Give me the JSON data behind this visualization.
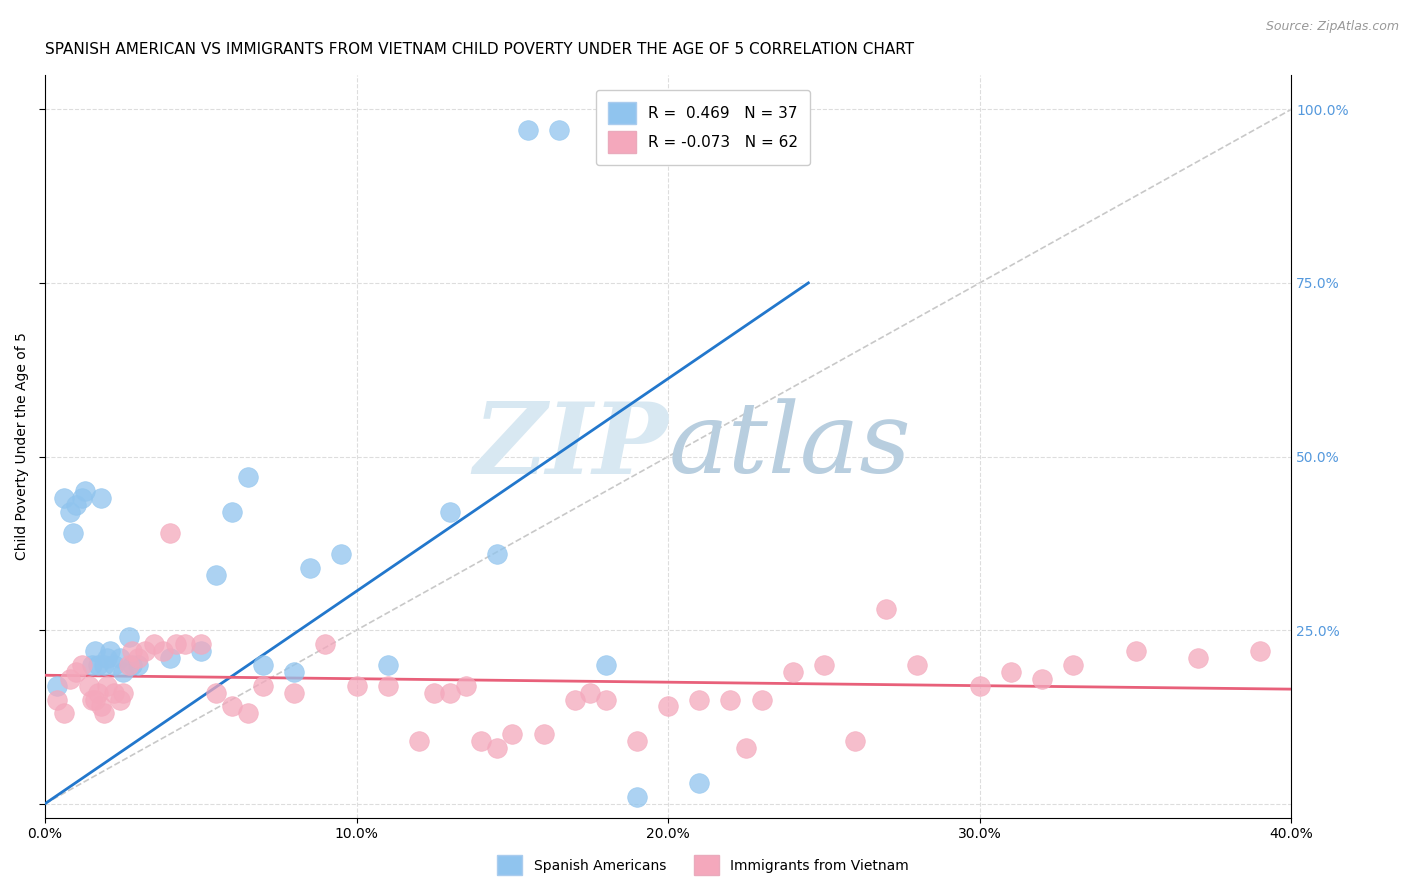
{
  "title": "SPANISH AMERICAN VS IMMIGRANTS FROM VIETNAM CHILD POVERTY UNDER THE AGE OF 5 CORRELATION CHART",
  "source": "Source: ZipAtlas.com",
  "ylabel": "Child Poverty Under the Age of 5",
  "xlabel": "",
  "xlim": [
    0.0,
    0.4
  ],
  "ylim": [
    -0.02,
    1.05
  ],
  "xticks": [
    0.0,
    0.1,
    0.2,
    0.3,
    0.4
  ],
  "yticks": [
    0.0,
    0.25,
    0.5,
    0.75,
    1.0
  ],
  "xtick_labels": [
    "0.0%",
    "10.0%",
    "20.0%",
    "30.0%",
    "40.0%"
  ],
  "right_ytick_labels": [
    "",
    "25.0%",
    "50.0%",
    "75.0%",
    "100.0%"
  ],
  "blue_R": 0.469,
  "blue_N": 37,
  "pink_R": -0.073,
  "pink_N": 62,
  "blue_color": "#90C4EE",
  "pink_color": "#F4A8BC",
  "blue_line_color": "#2277CC",
  "pink_line_color": "#E8607A",
  "watermark_color": "#E2EEF8",
  "background_color": "#FFFFFF",
  "blue_scatter_x": [
    0.004,
    0.006,
    0.008,
    0.009,
    0.01,
    0.012,
    0.013,
    0.015,
    0.016,
    0.017,
    0.018,
    0.019,
    0.02,
    0.021,
    0.022,
    0.024,
    0.025,
    0.027,
    0.028,
    0.03,
    0.04,
    0.05,
    0.055,
    0.06,
    0.065,
    0.07,
    0.08,
    0.085,
    0.095,
    0.11,
    0.13,
    0.145,
    0.155,
    0.165,
    0.18,
    0.19,
    0.21
  ],
  "blue_scatter_y": [
    0.17,
    0.44,
    0.42,
    0.39,
    0.43,
    0.44,
    0.45,
    0.2,
    0.22,
    0.2,
    0.44,
    0.2,
    0.21,
    0.22,
    0.2,
    0.21,
    0.19,
    0.24,
    0.2,
    0.2,
    0.21,
    0.22,
    0.33,
    0.42,
    0.47,
    0.2,
    0.19,
    0.34,
    0.36,
    0.2,
    0.42,
    0.36,
    0.97,
    0.97,
    0.2,
    0.01,
    0.03
  ],
  "pink_scatter_x": [
    0.004,
    0.006,
    0.008,
    0.01,
    0.012,
    0.014,
    0.015,
    0.016,
    0.017,
    0.018,
    0.019,
    0.02,
    0.022,
    0.024,
    0.025,
    0.027,
    0.028,
    0.03,
    0.032,
    0.035,
    0.038,
    0.04,
    0.042,
    0.045,
    0.05,
    0.055,
    0.06,
    0.065,
    0.07,
    0.08,
    0.09,
    0.1,
    0.11,
    0.12,
    0.125,
    0.13,
    0.135,
    0.14,
    0.145,
    0.15,
    0.16,
    0.17,
    0.175,
    0.18,
    0.19,
    0.2,
    0.21,
    0.22,
    0.225,
    0.23,
    0.24,
    0.25,
    0.26,
    0.27,
    0.28,
    0.3,
    0.31,
    0.32,
    0.33,
    0.35,
    0.37,
    0.39
  ],
  "pink_scatter_y": [
    0.15,
    0.13,
    0.18,
    0.19,
    0.2,
    0.17,
    0.15,
    0.15,
    0.16,
    0.14,
    0.13,
    0.17,
    0.16,
    0.15,
    0.16,
    0.2,
    0.22,
    0.21,
    0.22,
    0.23,
    0.22,
    0.39,
    0.23,
    0.23,
    0.23,
    0.16,
    0.14,
    0.13,
    0.17,
    0.16,
    0.23,
    0.17,
    0.17,
    0.09,
    0.16,
    0.16,
    0.17,
    0.09,
    0.08,
    0.1,
    0.1,
    0.15,
    0.16,
    0.15,
    0.09,
    0.14,
    0.15,
    0.15,
    0.08,
    0.15,
    0.19,
    0.2,
    0.09,
    0.28,
    0.2,
    0.17,
    0.19,
    0.18,
    0.2,
    0.22,
    0.21,
    0.22
  ],
  "blue_line_x": [
    0.0,
    0.245
  ],
  "blue_line_y": [
    0.0,
    0.75
  ],
  "pink_line_x": [
    0.0,
    0.4
  ],
  "pink_line_y": [
    0.185,
    0.165
  ],
  "diag_line_x": [
    0.0,
    0.4
  ],
  "diag_line_y": [
    0.0,
    1.0
  ],
  "grid_color": "#DDDDDD",
  "title_fontsize": 11,
  "axis_label_fontsize": 10,
  "tick_fontsize": 10,
  "legend_fontsize": 11,
  "right_ytick_color": "#5599DD"
}
